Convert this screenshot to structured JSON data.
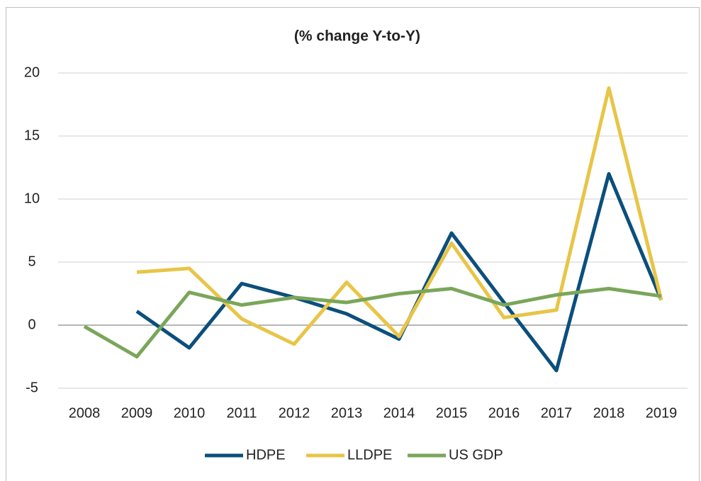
{
  "chart_data": {
    "type": "line",
    "title": "(% change Y-to-Y)",
    "categories": [
      "2008",
      "2009",
      "2010",
      "2011",
      "2012",
      "2013",
      "2014",
      "2015",
      "2016",
      "2017",
      "2018",
      "2019"
    ],
    "series": [
      {
        "name": "HDPE",
        "color": "#0b4f7c",
        "values": [
          null,
          1.1,
          -1.8,
          3.3,
          2.2,
          0.9,
          -1.1,
          7.3,
          1.8,
          -3.6,
          12.0,
          2.0
        ]
      },
      {
        "name": "LLDPE",
        "color": "#e8c547",
        "values": [
          null,
          4.2,
          4.5,
          0.5,
          -1.5,
          3.4,
          -0.9,
          6.5,
          0.6,
          1.2,
          18.8,
          2.0
        ]
      },
      {
        "name": "US GDP",
        "color": "#7aa65a",
        "values": [
          -0.1,
          -2.5,
          2.6,
          1.6,
          2.2,
          1.8,
          2.5,
          2.9,
          1.6,
          2.4,
          2.9,
          2.3
        ]
      }
    ],
    "ylim": [
      -5,
      20
    ],
    "yticks": [
      -5,
      0,
      5,
      10,
      15,
      20
    ],
    "grid": true,
    "legend": "bottom"
  }
}
